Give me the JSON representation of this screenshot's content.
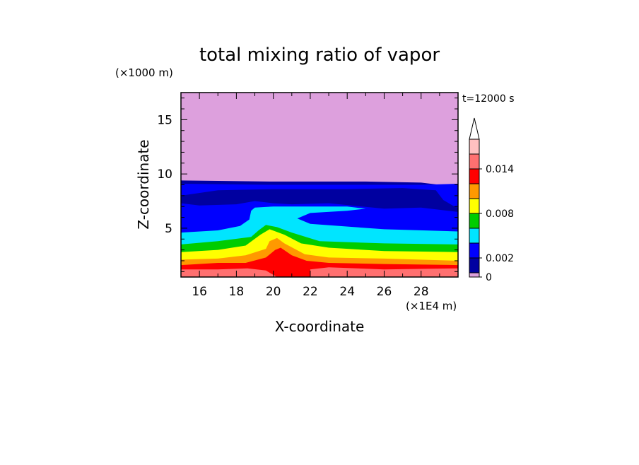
{
  "chart_data": {
    "type": "heatmap",
    "title": "total mixing ratio of vapor",
    "xlabel": "X-coordinate",
    "ylabel": "Z-coordinate",
    "x_unit": "(×1E4 m)",
    "y_unit": "(×1000 m)",
    "time_label": "t=12000 s",
    "xlim": [
      15,
      30
    ],
    "ylim": [
      0.5,
      17.5
    ],
    "x_ticks": [
      16,
      18,
      20,
      22,
      24,
      26,
      28
    ],
    "y_ticks": [
      5,
      10,
      15
    ],
    "colorbar": {
      "levels": [
        0,
        0.001,
        0.002,
        0.004,
        0.006,
        0.008,
        0.01,
        0.012,
        0.014,
        0.016
      ],
      "colors": [
        "#dda0dd",
        "#0000a0",
        "#0000ff",
        "#00e5ff",
        "#00cc00",
        "#ffff00",
        "#ff9900",
        "#ff0000",
        "#ff7070",
        "#ffc0c0"
      ],
      "labels": [
        {
          "value": 0,
          "text": "0"
        },
        {
          "value": 0.002,
          "text": "0.002"
        },
        {
          "value": 0.008,
          "text": "0.008"
        },
        {
          "value": 0.014,
          "text": "0.014"
        }
      ],
      "extend_top": true
    },
    "bands": [
      {
        "level": 0,
        "color": "#dda0dd",
        "points": [
          [
            15,
            0.5
          ],
          [
            30,
            0.5
          ],
          [
            30,
            17.5
          ],
          [
            15,
            17.5
          ]
        ]
      },
      {
        "level": 0.001,
        "color": "#0000a0",
        "points": [
          [
            15,
            0.5
          ],
          [
            30,
            0.5
          ],
          [
            30,
            7.8
          ],
          [
            29.6,
            8.4
          ],
          [
            29,
            9.0
          ],
          [
            28,
            9.2
          ],
          [
            25,
            9.3
          ],
          [
            20,
            9.3
          ],
          [
            15,
            9.4
          ]
        ]
      },
      {
        "level": 0.002,
        "color": "#0000ff",
        "points": [
          [
            15,
            0.5
          ],
          [
            30,
            0.5
          ],
          [
            30,
            6.5
          ],
          [
            28,
            6.9
          ],
          [
            26,
            6.8
          ],
          [
            23,
            7.3
          ],
          [
            21,
            7.2
          ],
          [
            20,
            7.3
          ],
          [
            19,
            7.5
          ],
          [
            18,
            7.2
          ],
          [
            16,
            7.1
          ],
          [
            15,
            7.3
          ],
          [
            15,
            8.0
          ],
          [
            17,
            8.5
          ],
          [
            20,
            8.6
          ],
          [
            24,
            8.6
          ],
          [
            27,
            8.7
          ],
          [
            28.8,
            8.5
          ],
          [
            29.2,
            7.6
          ],
          [
            29.8,
            7.0
          ],
          [
            30,
            6.9
          ],
          [
            30,
            9.1
          ],
          [
            28,
            9.0
          ],
          [
            25,
            9.0
          ],
          [
            20,
            9.0
          ],
          [
            15,
            9.1
          ]
        ]
      },
      {
        "level": 0.004,
        "color": "#00e5ff",
        "points": [
          [
            15,
            0.5
          ],
          [
            30,
            0.5
          ],
          [
            30,
            4.7
          ],
          [
            26,
            4.9
          ],
          [
            22,
            5.4
          ],
          [
            21.3,
            5.9
          ],
          [
            22,
            6.4
          ],
          [
            24,
            6.6
          ],
          [
            25,
            6.8
          ],
          [
            24,
            7.0
          ],
          [
            22,
            7.0
          ],
          [
            20,
            7.0
          ],
          [
            19,
            6.9
          ],
          [
            18.8,
            6.6
          ],
          [
            18.7,
            5.8
          ],
          [
            18.2,
            5.2
          ],
          [
            17,
            4.8
          ],
          [
            15,
            4.6
          ]
        ]
      },
      {
        "level": 0.006,
        "color": "#00cc00",
        "points": [
          [
            15,
            0.5
          ],
          [
            30,
            0.5
          ],
          [
            30,
            3.5
          ],
          [
            26,
            3.6
          ],
          [
            22.5,
            3.8
          ],
          [
            21,
            4.6
          ],
          [
            20.2,
            5.1
          ],
          [
            19.6,
            5.3
          ],
          [
            19.2,
            4.8
          ],
          [
            18.8,
            4.2
          ],
          [
            17,
            3.8
          ],
          [
            15,
            3.5
          ]
        ]
      },
      {
        "level": 0.008,
        "color": "#ffff00",
        "points": [
          [
            15,
            0.5
          ],
          [
            30,
            0.5
          ],
          [
            30,
            2.8
          ],
          [
            26,
            2.9
          ],
          [
            23,
            3.2
          ],
          [
            21.5,
            3.6
          ],
          [
            20.6,
            4.4
          ],
          [
            19.8,
            4.9
          ],
          [
            19.3,
            4.4
          ],
          [
            18.5,
            3.4
          ],
          [
            17,
            3.0
          ],
          [
            15,
            2.8
          ]
        ]
      },
      {
        "level": 0.01,
        "color": "#ff9900",
        "points": [
          [
            15,
            0.5
          ],
          [
            30,
            0.5
          ],
          [
            30,
            2.0
          ],
          [
            26,
            2.2
          ],
          [
            23,
            2.3
          ],
          [
            21.7,
            2.6
          ],
          [
            20.6,
            3.6
          ],
          [
            20.2,
            4.1
          ],
          [
            19.8,
            3.8
          ],
          [
            19.6,
            3.1
          ],
          [
            18.5,
            2.5
          ],
          [
            17,
            2.2
          ],
          [
            15,
            2.1
          ]
        ]
      },
      {
        "level": 0.012,
        "color": "#ff0000",
        "points": [
          [
            15,
            0.5
          ],
          [
            30,
            0.5
          ],
          [
            30,
            1.6
          ],
          [
            26,
            1.7
          ],
          [
            23,
            1.8
          ],
          [
            21.8,
            2.0
          ],
          [
            21,
            2.5
          ],
          [
            20.4,
            3.2
          ],
          [
            20.1,
            3.0
          ],
          [
            19.6,
            2.3
          ],
          [
            18.5,
            1.8
          ],
          [
            17,
            1.8
          ],
          [
            15,
            1.6
          ]
        ]
      },
      {
        "level": 0.014,
        "color": "#ff7070",
        "points": [
          [
            22,
            0.5
          ],
          [
            30,
            0.5
          ],
          [
            30,
            1.3
          ],
          [
            26,
            1.2
          ],
          [
            23,
            1.4
          ],
          [
            22,
            1.2
          ]
        ]
      },
      {
        "level": 0.014,
        "color": "#ff7070",
        "points": [
          [
            15,
            0.5
          ],
          [
            20.2,
            0.5
          ],
          [
            19.6,
            1.1
          ],
          [
            18.6,
            1.3
          ],
          [
            17,
            1.2
          ],
          [
            15,
            1.2
          ]
        ]
      }
    ]
  }
}
